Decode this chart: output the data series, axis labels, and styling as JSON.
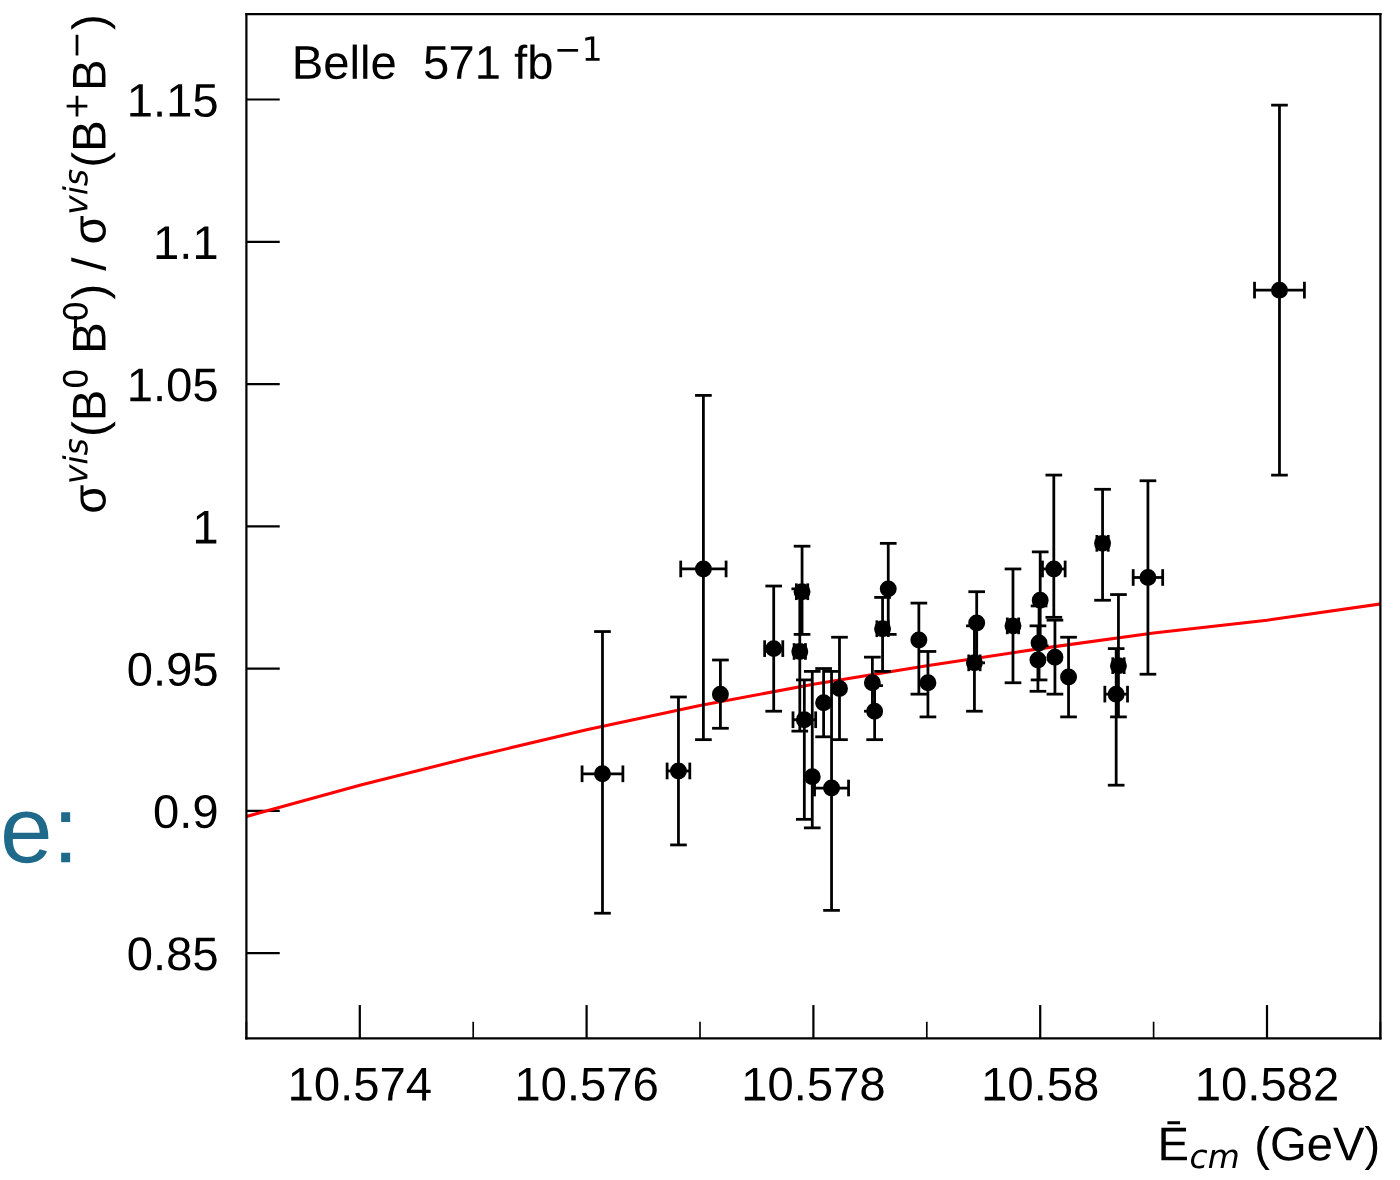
{
  "chart_data": {
    "type": "scatter",
    "xlabel": "Ē$_{cm}$ (GeV)",
    "ylabel": "σ$^{vis}$(B$^{0}$ B̄$^{0}$) / σ$^{vis}$(B$^{+}$B$^{−}$)",
    "annotations": [
      "Belle  571 fb$^{−1}$",
      "e:"
    ],
    "xlim": [
      10.573,
      10.583
    ],
    "xticks": [
      10.574,
      10.576,
      10.578,
      {
        "value": 10.58,
        "label": "10.58"
      },
      10.582
    ],
    "ylim": [
      0.82,
      1.18
    ],
    "yticks": [
      0.85,
      0.9,
      0.95,
      {
        "value": 1.0,
        "label": "1"
      },
      1.05,
      1.1,
      1.15
    ],
    "grid": false,
    "series": [
      {
        "color": "#000000",
        "marker": "circle",
        "x": [
          10.57614,
          10.57681,
          10.57703,
          10.57718,
          10.57765,
          10.5779,
          10.57788,
          10.57792,
          10.57799,
          10.57809,
          10.57816,
          10.57823,
          10.57852,
          10.57854,
          10.57861,
          10.57866,
          10.57893,
          10.57901,
          10.57944,
          10.57942,
          10.57976,
          10.58,
          10.57999,
          10.57998,
          10.58012,
          10.58013,
          10.58025,
          10.58055,
          10.58069,
          10.58067,
          10.58095,
          10.58211
        ],
        "values": [
          0.913,
          0.914,
          0.985,
          0.941,
          0.957,
          0.977,
          0.956,
          0.932,
          0.912,
          0.938,
          0.908,
          0.943,
          0.945,
          0.935,
          0.964,
          0.978,
          0.96,
          0.945,
          0.966,
          0.952,
          0.965,
          0.974,
          0.959,
          0.953,
          0.985,
          0.954,
          0.947,
          0.994,
          0.951,
          0.941,
          0.982,
          1.083
        ],
        "errors": [
          [
            0.864,
            0.963
          ],
          [
            0.888,
            0.94
          ],
          [
            0.925,
            1.046
          ],
          [
            0.929,
            0.953
          ],
          [
            0.935,
            0.979
          ],
          [
            0.962,
            0.993
          ],
          [
            0.928,
            0.978
          ],
          [
            0.897,
            0.946
          ],
          [
            0.894,
            0.949
          ],
          [
            0.926,
            0.95
          ],
          [
            0.865,
            0.949
          ],
          [
            0.925,
            0.961
          ],
          [
            0.935,
            0.954
          ],
          [
            0.925,
            0.944
          ],
          [
            0.949,
            0.975
          ],
          [
            0.962,
            0.994
          ],
          [
            0.941,
            0.973
          ],
          [
            0.933,
            0.956
          ],
          [
            0.952,
            0.977
          ],
          [
            0.935,
            0.965
          ],
          [
            0.945,
            0.985
          ],
          [
            0.958,
            0.991
          ],
          [
            0.946,
            0.972
          ],
          [
            0.942,
            0.965
          ],
          [
            0.968,
            1.018
          ],
          [
            0.941,
            0.967
          ],
          [
            0.933,
            0.961
          ],
          [
            0.974,
            1.013
          ],
          [
            0.933,
            0.976
          ],
          [
            0.909,
            0.957
          ],
          [
            0.948,
            1.016
          ],
          [
            1.018,
            1.148
          ]
        ],
        "xerrors": [
          0.00018,
          0.0001,
          0.0002,
          null,
          8e-05,
          5e-05,
          5e-05,
          0.0001,
          null,
          null,
          0.00015,
          null,
          null,
          null,
          5e-05,
          null,
          null,
          null,
          null,
          5e-05,
          5e-05,
          null,
          null,
          null,
          0.0001,
          null,
          null,
          5e-05,
          5e-05,
          0.0001,
          0.00013,
          0.00022
        ]
      },
      {
        "type": "line",
        "color": "#ff0000",
        "x": [
          10.573,
          10.574,
          10.575,
          10.576,
          10.577,
          10.578,
          10.579,
          10.58,
          10.581,
          10.582,
          10.583
        ],
        "values": [
          0.898,
          0.909,
          0.919,
          0.9285,
          0.937,
          0.9445,
          0.951,
          0.957,
          0.9625,
          0.967,
          0.9727
        ]
      }
    ]
  }
}
